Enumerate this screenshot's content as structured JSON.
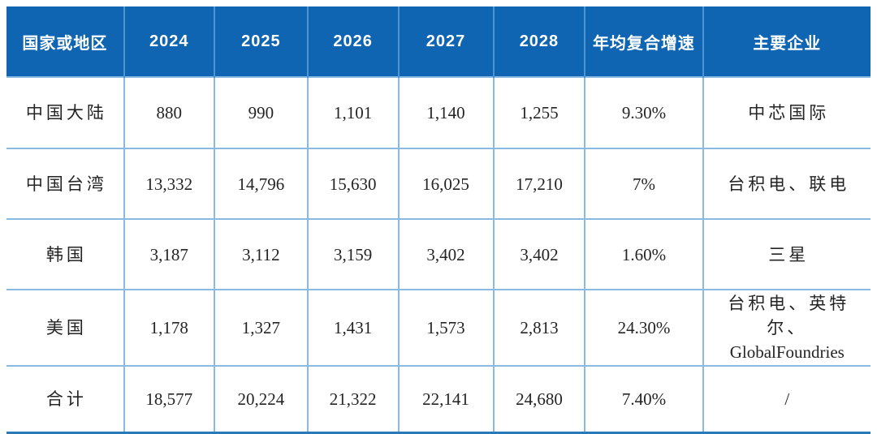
{
  "table": {
    "columns": [
      "国家或地区",
      "2024",
      "2025",
      "2026",
      "2027",
      "2028",
      "年均复合增速",
      "主要企业"
    ],
    "rows": [
      [
        "中国大陆",
        "880",
        "990",
        "1,101",
        "1,140",
        "1,255",
        "9.30%",
        "中芯国际"
      ],
      [
        "中国台湾",
        "13,332",
        "14,796",
        "15,630",
        "16,025",
        "17,210",
        "7%",
        "台积电、联电"
      ],
      [
        "韩国",
        "3,187",
        "3,112",
        "3,159",
        "3,402",
        "3,402",
        "1.60%",
        "三星"
      ],
      [
        "美国",
        "1,178",
        "1,327",
        "1,431",
        "1,573",
        "2,813",
        "24.30%",
        "台积电、英特尔、\nGlobalFoundries"
      ],
      [
        "合计",
        "18,577",
        "20,224",
        "21,322",
        "22,141",
        "24,680",
        "7.40%",
        "/"
      ]
    ]
  },
  "colors": {
    "header_bg": "#0f65b2",
    "header_divider": "#4d94d4",
    "grid_line": "#8ab9e2",
    "bottom_bar": "#2b7ab8",
    "body_text": "#242424",
    "header_text": "#ffffff"
  }
}
